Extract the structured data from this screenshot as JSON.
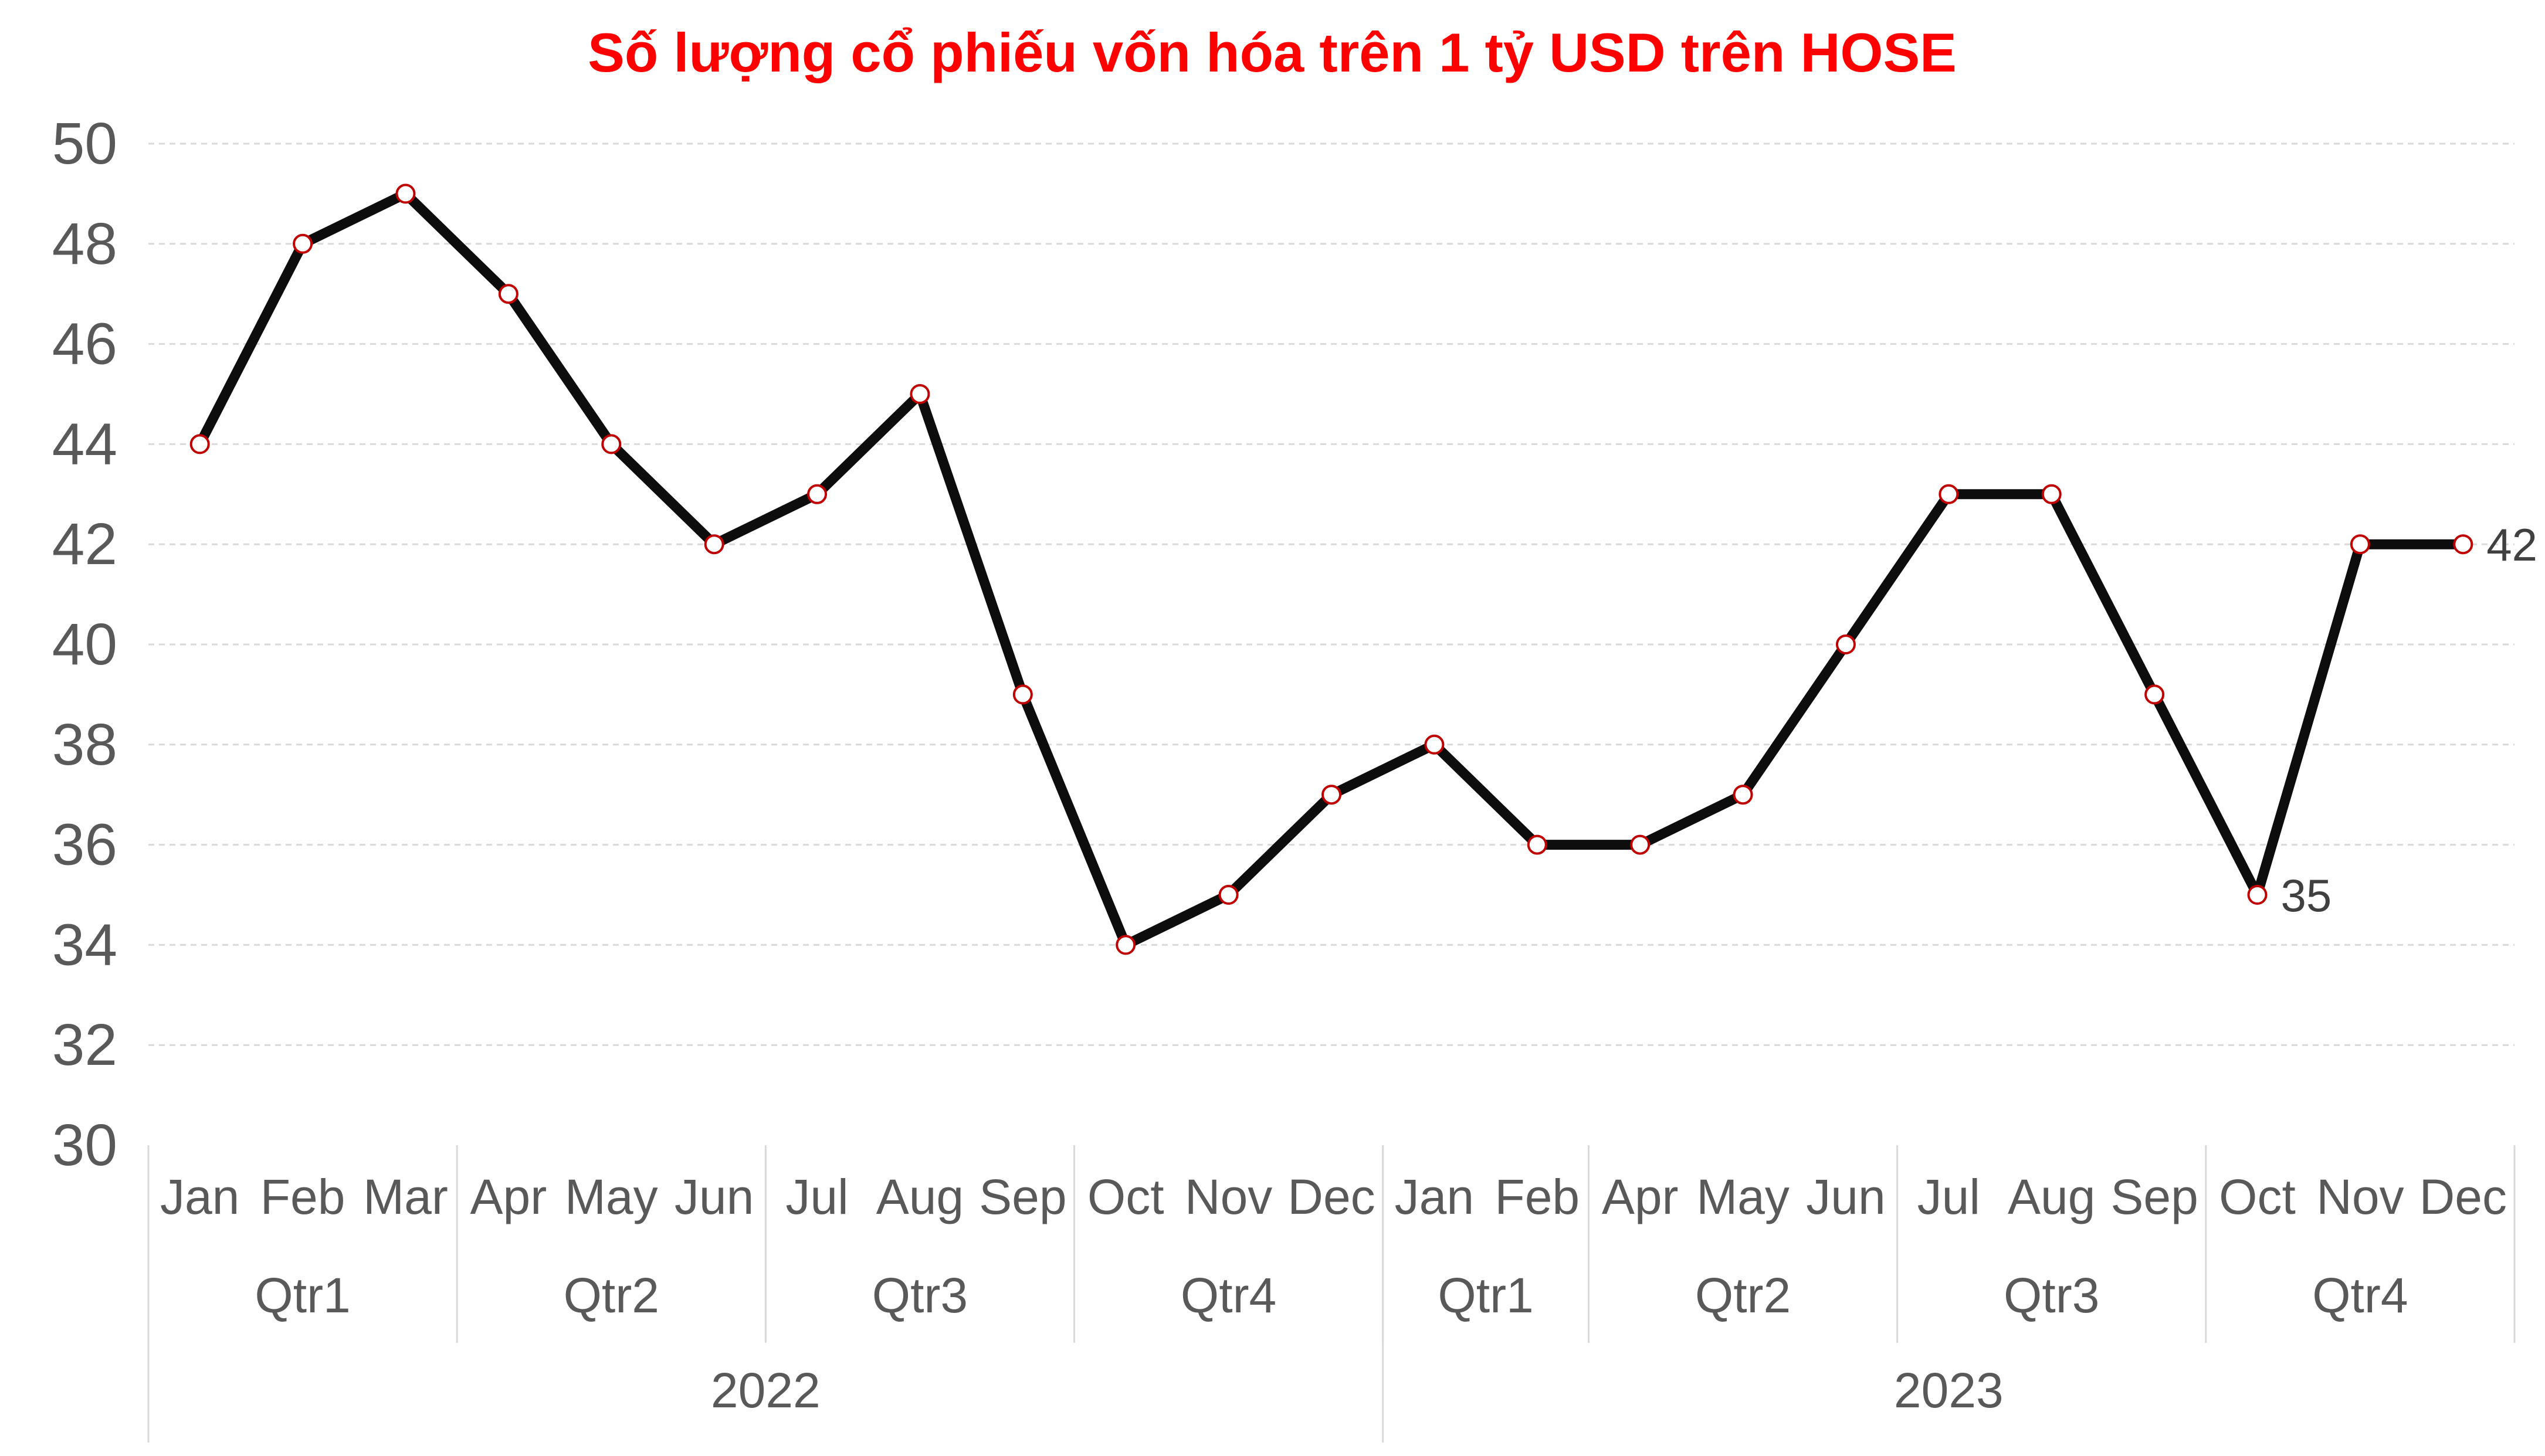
{
  "chart_data": {
    "type": "line",
    "title": "Số lượng cổ phiếu vốn hóa trên 1 tỷ USD trên HOSE",
    "ylim": [
      30,
      50
    ],
    "yticks": [
      "30",
      "32",
      "34",
      "36",
      "38",
      "40",
      "42",
      "44",
      "46",
      "48",
      "50"
    ],
    "grid": true,
    "legend": "none",
    "x": [
      {
        "year": "2022",
        "quarter": "Qtr1",
        "month": "Jan"
      },
      {
        "year": "2022",
        "quarter": "Qtr1",
        "month": "Feb"
      },
      {
        "year": "2022",
        "quarter": "Qtr1",
        "month": "Mar"
      },
      {
        "year": "2022",
        "quarter": "Qtr2",
        "month": "Apr"
      },
      {
        "year": "2022",
        "quarter": "Qtr2",
        "month": "May"
      },
      {
        "year": "2022",
        "quarter": "Qtr2",
        "month": "Jun"
      },
      {
        "year": "2022",
        "quarter": "Qtr3",
        "month": "Jul"
      },
      {
        "year": "2022",
        "quarter": "Qtr3",
        "month": "Aug"
      },
      {
        "year": "2022",
        "quarter": "Qtr3",
        "month": "Sep"
      },
      {
        "year": "2022",
        "quarter": "Qtr4",
        "month": "Oct"
      },
      {
        "year": "2022",
        "quarter": "Qtr4",
        "month": "Nov"
      },
      {
        "year": "2022",
        "quarter": "Qtr4",
        "month": "Dec"
      },
      {
        "year": "2023",
        "quarter": "Qtr1",
        "month": "Jan"
      },
      {
        "year": "2023",
        "quarter": "Qtr1",
        "month": "Feb"
      },
      {
        "year": "2023",
        "quarter": "Qtr2",
        "month": "Apr"
      },
      {
        "year": "2023",
        "quarter": "Qtr2",
        "month": "May"
      },
      {
        "year": "2023",
        "quarter": "Qtr2",
        "month": "Jun"
      },
      {
        "year": "2023",
        "quarter": "Qtr3",
        "month": "Jul"
      },
      {
        "year": "2023",
        "quarter": "Qtr3",
        "month": "Aug"
      },
      {
        "year": "2023",
        "quarter": "Qtr3",
        "month": "Sep"
      },
      {
        "year": "2023",
        "quarter": "Qtr4",
        "month": "Oct"
      },
      {
        "year": "2023",
        "quarter": "Qtr4",
        "month": "Nov"
      },
      {
        "year": "2023",
        "quarter": "Qtr4",
        "month": "Dec"
      }
    ],
    "series": [
      {
        "values": [
          44,
          48,
          49,
          47,
          44,
          42,
          43,
          45,
          39,
          34,
          35,
          37,
          38,
          36,
          36,
          37,
          40,
          43,
          43,
          39,
          35,
          42,
          42
        ]
      }
    ],
    "data_labels": [
      {
        "index": 20,
        "text": "35"
      },
      {
        "index": 22,
        "text": "42"
      }
    ],
    "colors": {
      "title": "#ff0000",
      "line": "#0d0d0d",
      "marker_fill": "#ffffff",
      "marker_stroke": "#c00000",
      "grid": "#d9d9d9",
      "text": "#595959"
    }
  }
}
